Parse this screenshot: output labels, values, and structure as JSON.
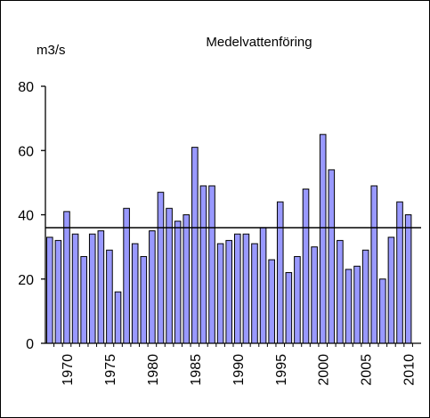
{
  "chart_data": {
    "type": "bar",
    "title": "Medelvattenföring",
    "ylabel": "m3/s",
    "xlabel": "",
    "ylim": [
      0,
      80
    ],
    "yticks": [
      0,
      20,
      40,
      60,
      80
    ],
    "xtick_labels": [
      "1970",
      "1975",
      "1980",
      "1985",
      "1990",
      "1995",
      "2000",
      "2005",
      "2010"
    ],
    "mean_line": 36,
    "grid": false,
    "legend": "none",
    "colors": {
      "bar_fill": "#9999ff",
      "bar_stroke": "#000000",
      "axis": "#000000"
    },
    "x": [
      1968,
      1969,
      1970,
      1971,
      1972,
      1973,
      1974,
      1975,
      1976,
      1977,
      1978,
      1979,
      1980,
      1981,
      1982,
      1983,
      1984,
      1985,
      1986,
      1987,
      1988,
      1989,
      1990,
      1991,
      1992,
      1993,
      1994,
      1995,
      1996,
      1997,
      1998,
      1999,
      2000,
      2001,
      2002,
      2003,
      2004,
      2005,
      2006,
      2007,
      2008,
      2009,
      2010
    ],
    "values": [
      33,
      32,
      41,
      34,
      27,
      34,
      35,
      29,
      16,
      42,
      31,
      27,
      35,
      47,
      42,
      38,
      40,
      61,
      49,
      49,
      31,
      32,
      34,
      34,
      31,
      36,
      26,
      44,
      22,
      27,
      48,
      30,
      65,
      54,
      32,
      23,
      24,
      29,
      49,
      20,
      33,
      44,
      40
    ]
  }
}
